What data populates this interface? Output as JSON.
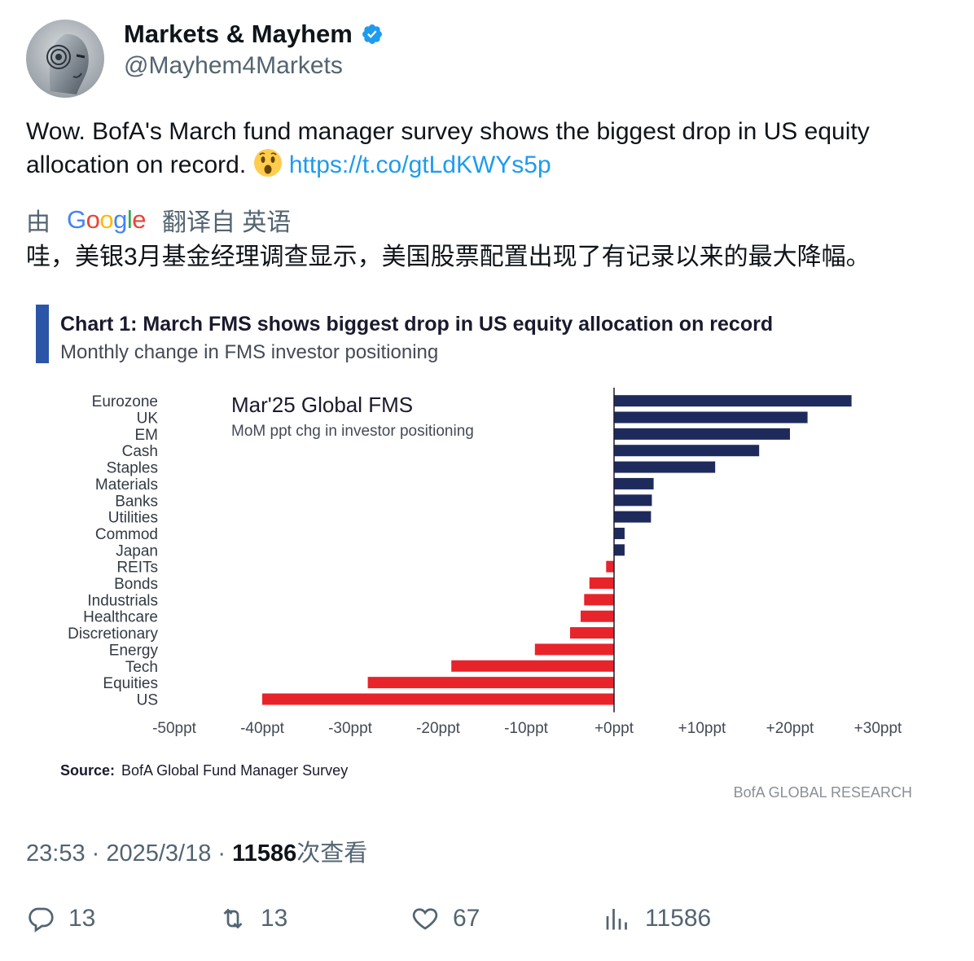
{
  "author": {
    "name": "Markets & Mayhem",
    "handle": "@Mayhem4Markets"
  },
  "tweet": {
    "text": "Wow. BofA's March fund manager survey shows the biggest drop in US equity allocation on record. ",
    "link": "https://t.co/gtLdKWYs5p",
    "translated_prefix": "由",
    "google_logo": "Google",
    "translated_suffix": "翻译自 英语",
    "translation": "哇，美银3月基金经理调查显示，美国股票配置出现了有记录以来的最大降幅。"
  },
  "chart_data": {
    "type": "bar",
    "orientation": "horizontal",
    "title": "Chart 1: March FMS shows biggest drop in US equity allocation on record",
    "subtitle": "Monthly change in FMS investor positioning",
    "inset_title": "Mar'25 Global FMS",
    "inset_subtitle": "MoM ppt chg in investor positioning",
    "categories": [
      "Eurozone",
      "UK",
      "EM",
      "Cash",
      "Staples",
      "Materials",
      "Banks",
      "Utilities",
      "Commod",
      "Japan",
      "REITs",
      "Bonds",
      "Industrials",
      "Healthcare",
      "Discretionary",
      "Energy",
      "Tech",
      "Equities",
      "US"
    ],
    "values": [
      27,
      22,
      20,
      16.5,
      11.5,
      4.5,
      4.3,
      4.2,
      1.2,
      1.2,
      -0.9,
      -2.8,
      -3.4,
      -3.8,
      -5,
      -9,
      -18.5,
      -28,
      -40
    ],
    "xlim": [
      -50,
      30
    ],
    "x_ticks": [
      "-50ppt",
      "-40ppt",
      "-30ppt",
      "-20ppt",
      "-10ppt",
      "+0ppt",
      "+10ppt",
      "+20ppt",
      "+30ppt"
    ],
    "x_tick_values": [
      -50,
      -40,
      -30,
      -20,
      -10,
      0,
      10,
      20,
      30
    ],
    "positive_color": "#1f2a5c",
    "negative_color": "#e8242b",
    "accent_bar_color": "#2b56a8",
    "source_label": "Source:",
    "source_text": "BofA Global Fund Manager Survey",
    "brand": "BofA GLOBAL RESEARCH"
  },
  "meta": {
    "time": "23:53",
    "date": "2025/3/18",
    "views": "11586",
    "views_suffix": "次查看"
  },
  "actions": {
    "replies": "13",
    "retweets": "13",
    "likes": "67",
    "views": "11586"
  },
  "colors": {
    "link": "#1d9bf0",
    "secondary_text": "#536471",
    "verified": "#1d9bf0"
  }
}
